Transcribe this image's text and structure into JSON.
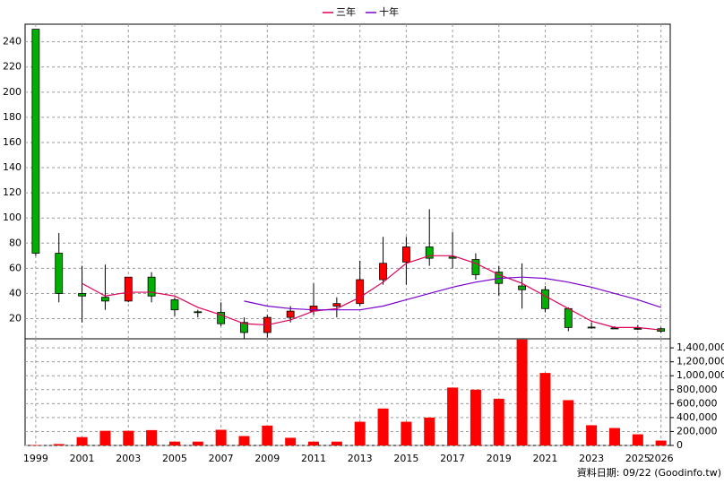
{
  "chart_data": [
    {
      "type": "candlestick",
      "legend": "top",
      "grid": true,
      "x": [
        1999,
        2000,
        2001,
        2002,
        2003,
        2004,
        2005,
        2006,
        2007,
        2008,
        2009,
        2010,
        2011,
        2012,
        2013,
        2014,
        2015,
        2016,
        2017,
        2018,
        2019,
        2020,
        2021,
        2022,
        2023,
        2024,
        2025,
        2026
      ],
      "xlim": [
        1998.54,
        2026.4
      ],
      "xticks": [
        1999,
        2001,
        2003,
        2005,
        2007,
        2009,
        2011,
        2013,
        2015,
        2017,
        2019,
        2021,
        2023,
        2025,
        2026
      ],
      "ylim": [
        4,
        254
      ],
      "yticks": [
        20,
        40,
        60,
        80,
        100,
        120,
        140,
        160,
        180,
        200,
        220,
        240
      ],
      "up_color": "#ff0000",
      "down_color": "#00b000",
      "open": [
        250,
        72,
        40,
        37,
        34,
        53,
        35,
        25.5,
        25,
        17,
        9,
        21,
        26,
        30,
        32,
        51,
        65,
        77,
        69,
        67,
        57,
        46,
        43,
        28,
        13.3,
        12.6,
        12.3,
        12
      ],
      "high": [
        250,
        88,
        62,
        63,
        53,
        57,
        37,
        27,
        33,
        21,
        23,
        30,
        48,
        37,
        66,
        85,
        85,
        107,
        89,
        72,
        62,
        64,
        46,
        29,
        17,
        14,
        15,
        13
      ],
      "low": [
        70,
        33,
        17,
        27,
        33,
        33,
        22,
        21,
        14,
        4,
        5,
        17,
        23,
        21,
        30,
        47,
        47,
        62,
        60,
        51,
        38,
        28,
        25,
        10,
        12,
        12,
        11,
        9
      ],
      "close": [
        72,
        40,
        38,
        34,
        53,
        38,
        27,
        25,
        16,
        9,
        21,
        26,
        30,
        32,
        51,
        64,
        77,
        68,
        68,
        55,
        48,
        43,
        28,
        13,
        13,
        12.5,
        12,
        10
      ],
      "series": [
        {
          "name": "三年",
          "color": "#e0005a",
          "values": [
            null,
            null,
            48,
            38,
            41,
            41,
            38,
            29,
            23,
            16,
            15,
            19,
            26,
            28,
            37,
            49,
            64,
            70,
            70,
            64,
            55,
            48,
            38,
            28,
            18,
            13,
            13,
            11
          ]
        },
        {
          "name": "十年",
          "color": "#7a00d0",
          "values": [
            null,
            null,
            null,
            null,
            null,
            null,
            null,
            null,
            null,
            34,
            30,
            28,
            27,
            27,
            27,
            30,
            35,
            40,
            45,
            49,
            52,
            53,
            52,
            49,
            45,
            40,
            35,
            29
          ]
        }
      ]
    },
    {
      "type": "bar",
      "grid": true,
      "color": "#ff0000",
      "x": [
        1999,
        2000,
        2001,
        2002,
        2003,
        2004,
        2005,
        2006,
        2007,
        2008,
        2009,
        2010,
        2011,
        2012,
        2013,
        2014,
        2015,
        2016,
        2017,
        2018,
        2019,
        2020,
        2021,
        2022,
        2023,
        2024,
        2025,
        2026
      ],
      "xlim": [
        1998.54,
        2026.4
      ],
      "xticks": [
        1999,
        2001,
        2003,
        2005,
        2007,
        2009,
        2011,
        2013,
        2015,
        2017,
        2019,
        2021,
        2023,
        2025,
        2026
      ],
      "values": [
        5000,
        20000,
        120000,
        210000,
        210000,
        220000,
        55000,
        55000,
        225000,
        135000,
        285000,
        110000,
        55000,
        55000,
        340000,
        530000,
        340000,
        400000,
        830000,
        800000,
        670000,
        1520000,
        1040000,
        650000,
        290000,
        250000,
        160000,
        70000
      ],
      "ylim": [
        0,
        1530000
      ],
      "yticks": [
        0,
        {
          "value": 200000,
          "label": "200,000"
        },
        {
          "value": 400000,
          "label": "400,000"
        },
        {
          "value": 600000,
          "label": "600,000"
        },
        {
          "value": 800000,
          "label": "800,000"
        },
        {
          "value": 1000000,
          "label": "1,000,000"
        },
        {
          "value": 1200000,
          "label": "1,200,000"
        },
        {
          "value": 1400000,
          "label": "1,400,000"
        }
      ],
      "note": "資料日期: 09/22 (Goodinfo.tw)"
    }
  ]
}
